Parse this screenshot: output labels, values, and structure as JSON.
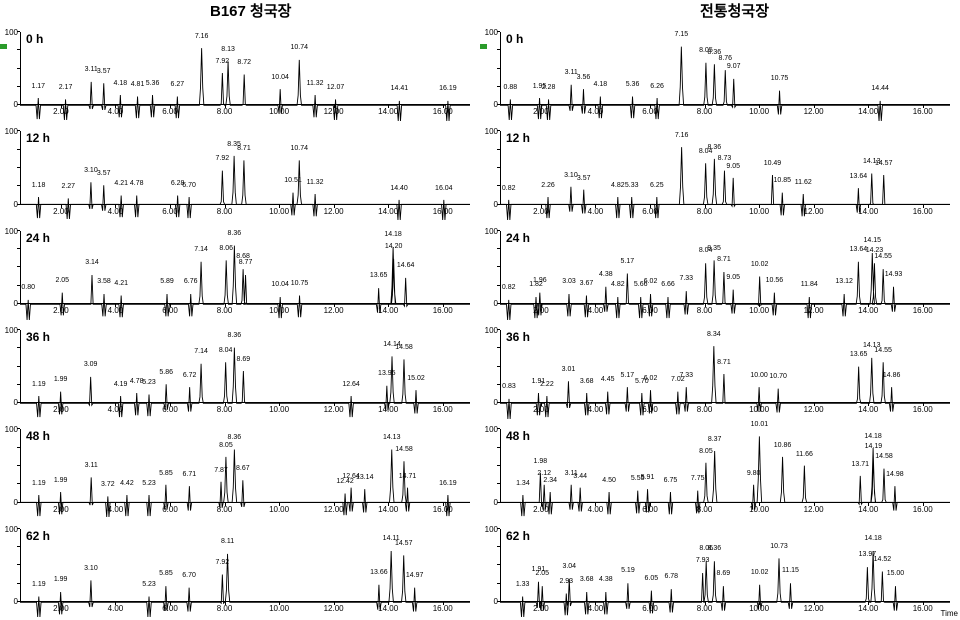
{
  "titles": {
    "left": "B167 청국장",
    "right": "전통청국장"
  },
  "axis": {
    "y_ticks": [
      0,
      100
    ],
    "x_ticks": [
      2.0,
      4.0,
      6.0,
      8.0,
      10.0,
      12.0,
      14.0,
      16.0
    ],
    "x_min": 0.5,
    "x_max": 17.0,
    "time_label": "Time",
    "line_color": "#000000",
    "tick_fontsize": 8
  },
  "style": {
    "trace_color": "#000000",
    "trace_width": 0.9,
    "label_fontsize": 7,
    "hour_fontsize": 12,
    "background": "#ffffff"
  },
  "rows": [
    "0 h",
    "12 h",
    "24 h",
    "36 h",
    "48 h",
    "62 h"
  ],
  "panels": [
    {
      "col": 0,
      "row": 0,
      "hour": "0 h",
      "marker": true,
      "peaks": [
        {
          "rt": 1.17,
          "h": 10
        },
        {
          "rt": 2.17,
          "h": 8
        },
        {
          "rt": 3.11,
          "h": 32
        },
        {
          "rt": 3.57,
          "h": 30
        },
        {
          "rt": 4.18,
          "h": 14
        },
        {
          "rt": 4.81,
          "h": 12
        },
        {
          "rt": 5.36,
          "h": 14
        },
        {
          "rt": 6.27,
          "h": 12
        },
        {
          "rt": 7.16,
          "h": 78
        },
        {
          "rt": 7.92,
          "h": 44
        },
        {
          "rt": 8.13,
          "h": 60
        },
        {
          "rt": 8.72,
          "h": 42
        },
        {
          "rt": 10.04,
          "h": 22
        },
        {
          "rt": 10.74,
          "h": 62
        },
        {
          "rt": 11.32,
          "h": 14
        },
        {
          "rt": 12.07,
          "h": 8
        },
        {
          "rt": 14.41,
          "h": 6
        },
        {
          "rt": 16.19,
          "h": 6
        }
      ]
    },
    {
      "col": 1,
      "row": 0,
      "hour": "0 h",
      "marker": true,
      "peaks": [
        {
          "rt": 0.88,
          "h": 8
        },
        {
          "rt": 1.95,
          "h": 10
        },
        {
          "rt": 2.28,
          "h": 8
        },
        {
          "rt": 3.11,
          "h": 28
        },
        {
          "rt": 3.56,
          "h": 22
        },
        {
          "rt": 4.18,
          "h": 12
        },
        {
          "rt": 5.36,
          "h": 12
        },
        {
          "rt": 6.26,
          "h": 10
        },
        {
          "rt": 7.15,
          "h": 80
        },
        {
          "rt": 8.05,
          "h": 58
        },
        {
          "rt": 8.36,
          "h": 56
        },
        {
          "rt": 8.76,
          "h": 48
        },
        {
          "rt": 9.07,
          "h": 36
        },
        {
          "rt": 10.75,
          "h": 20
        },
        {
          "rt": 14.44,
          "h": 6
        }
      ]
    },
    {
      "col": 0,
      "row": 1,
      "hour": "12 h",
      "peaks": [
        {
          "rt": 1.18,
          "h": 10
        },
        {
          "rt": 2.27,
          "h": 8
        },
        {
          "rt": 3.1,
          "h": 30
        },
        {
          "rt": 3.57,
          "h": 26
        },
        {
          "rt": 4.21,
          "h": 12
        },
        {
          "rt": 4.78,
          "h": 12
        },
        {
          "rt": 6.28,
          "h": 12
        },
        {
          "rt": 6.7,
          "h": 10
        },
        {
          "rt": 7.92,
          "h": 46
        },
        {
          "rt": 8.35,
          "h": 66
        },
        {
          "rt": 8.71,
          "h": 60
        },
        {
          "rt": 10.51,
          "h": 16
        },
        {
          "rt": 10.74,
          "h": 60
        },
        {
          "rt": 11.32,
          "h": 14
        },
        {
          "rt": 14.4,
          "h": 6
        },
        {
          "rt": 16.04,
          "h": 6
        }
      ]
    },
    {
      "col": 1,
      "row": 1,
      "hour": "12 h",
      "peaks": [
        {
          "rt": 0.82,
          "h": 6
        },
        {
          "rt": 2.26,
          "h": 10
        },
        {
          "rt": 3.1,
          "h": 24
        },
        {
          "rt": 3.57,
          "h": 20
        },
        {
          "rt": 4.82,
          "h": 10
        },
        {
          "rt": 5.33,
          "h": 10
        },
        {
          "rt": 6.25,
          "h": 10
        },
        {
          "rt": 7.16,
          "h": 78
        },
        {
          "rt": 8.04,
          "h": 56
        },
        {
          "rt": 8.36,
          "h": 62
        },
        {
          "rt": 8.73,
          "h": 46
        },
        {
          "rt": 9.05,
          "h": 36
        },
        {
          "rt": 10.49,
          "h": 40
        },
        {
          "rt": 10.85,
          "h": 16
        },
        {
          "rt": 11.62,
          "h": 14
        },
        {
          "rt": 13.64,
          "h": 22
        },
        {
          "rt": 14.13,
          "h": 42
        },
        {
          "rt": 14.57,
          "h": 40
        }
      ]
    },
    {
      "col": 0,
      "row": 2,
      "hour": "24 h",
      "peaks": [
        {
          "rt": 0.8,
          "h": 6
        },
        {
          "rt": 2.05,
          "h": 16
        },
        {
          "rt": 3.14,
          "h": 40
        },
        {
          "rt": 3.58,
          "h": 14
        },
        {
          "rt": 4.21,
          "h": 12
        },
        {
          "rt": 5.89,
          "h": 14
        },
        {
          "rt": 6.76,
          "h": 14
        },
        {
          "rt": 7.14,
          "h": 58
        },
        {
          "rt": 8.06,
          "h": 60
        },
        {
          "rt": 8.36,
          "h": 80
        },
        {
          "rt": 8.68,
          "h": 48
        },
        {
          "rt": 8.77,
          "h": 40
        },
        {
          "rt": 10.04,
          "h": 10
        },
        {
          "rt": 10.75,
          "h": 12
        },
        {
          "rt": 13.65,
          "h": 22
        },
        {
          "rt": 14.18,
          "h": 78
        },
        {
          "rt": 14.2,
          "h": 62
        },
        {
          "rt": 14.64,
          "h": 36
        }
      ]
    },
    {
      "col": 1,
      "row": 2,
      "hour": "24 h",
      "peaks": [
        {
          "rt": 0.82,
          "h": 6
        },
        {
          "rt": 1.82,
          "h": 10
        },
        {
          "rt": 1.96,
          "h": 16
        },
        {
          "rt": 3.03,
          "h": 14
        },
        {
          "rt": 3.67,
          "h": 12
        },
        {
          "rt": 4.38,
          "h": 24
        },
        {
          "rt": 4.82,
          "h": 10
        },
        {
          "rt": 5.17,
          "h": 42
        },
        {
          "rt": 5.66,
          "h": 10
        },
        {
          "rt": 6.02,
          "h": 14
        },
        {
          "rt": 6.66,
          "h": 10
        },
        {
          "rt": 7.33,
          "h": 18
        },
        {
          "rt": 8.04,
          "h": 56
        },
        {
          "rt": 8.35,
          "h": 60
        },
        {
          "rt": 8.71,
          "h": 44
        },
        {
          "rt": 9.05,
          "h": 20
        },
        {
          "rt": 10.02,
          "h": 38
        },
        {
          "rt": 10.56,
          "h": 16
        },
        {
          "rt": 11.84,
          "h": 10
        },
        {
          "rt": 13.12,
          "h": 14
        },
        {
          "rt": 13.64,
          "h": 58
        },
        {
          "rt": 14.15,
          "h": 70
        },
        {
          "rt": 14.23,
          "h": 56
        },
        {
          "rt": 14.55,
          "h": 48
        },
        {
          "rt": 14.93,
          "h": 24
        }
      ]
    },
    {
      "col": 0,
      "row": 3,
      "hour": "36 h",
      "peaks": [
        {
          "rt": 1.19,
          "h": 10
        },
        {
          "rt": 1.99,
          "h": 16
        },
        {
          "rt": 3.09,
          "h": 36
        },
        {
          "rt": 4.19,
          "h": 10
        },
        {
          "rt": 4.78,
          "h": 14
        },
        {
          "rt": 5.23,
          "h": 12
        },
        {
          "rt": 5.86,
          "h": 26
        },
        {
          "rt": 6.72,
          "h": 22
        },
        {
          "rt": 7.14,
          "h": 54
        },
        {
          "rt": 8.04,
          "h": 56
        },
        {
          "rt": 8.36,
          "h": 76
        },
        {
          "rt": 8.69,
          "h": 44
        },
        {
          "rt": 12.64,
          "h": 10
        },
        {
          "rt": 13.95,
          "h": 24
        },
        {
          "rt": 14.14,
          "h": 64
        },
        {
          "rt": 14.58,
          "h": 60
        },
        {
          "rt": 15.02,
          "h": 18
        }
      ]
    },
    {
      "col": 1,
      "row": 3,
      "hour": "36 h",
      "peaks": [
        {
          "rt": 0.83,
          "h": 6
        },
        {
          "rt": 1.91,
          "h": 14
        },
        {
          "rt": 2.22,
          "h": 10
        },
        {
          "rt": 3.01,
          "h": 30
        },
        {
          "rt": 3.68,
          "h": 14
        },
        {
          "rt": 4.45,
          "h": 16
        },
        {
          "rt": 5.17,
          "h": 22
        },
        {
          "rt": 5.7,
          "h": 14
        },
        {
          "rt": 6.02,
          "h": 18
        },
        {
          "rt": 7.02,
          "h": 16
        },
        {
          "rt": 7.33,
          "h": 22
        },
        {
          "rt": 8.34,
          "h": 78
        },
        {
          "rt": 8.71,
          "h": 40
        },
        {
          "rt": 10.0,
          "h": 22
        },
        {
          "rt": 10.7,
          "h": 20
        },
        {
          "rt": 13.65,
          "h": 50
        },
        {
          "rt": 14.13,
          "h": 62
        },
        {
          "rt": 14.55,
          "h": 56
        },
        {
          "rt": 14.86,
          "h": 22
        }
      ]
    },
    {
      "col": 0,
      "row": 4,
      "hour": "48 h",
      "peaks": [
        {
          "rt": 1.19,
          "h": 10
        },
        {
          "rt": 1.99,
          "h": 14
        },
        {
          "rt": 3.11,
          "h": 34
        },
        {
          "rt": 3.72,
          "h": 8
        },
        {
          "rt": 4.42,
          "h": 10
        },
        {
          "rt": 5.23,
          "h": 10
        },
        {
          "rt": 5.85,
          "h": 24
        },
        {
          "rt": 6.71,
          "h": 22
        },
        {
          "rt": 7.87,
          "h": 28
        },
        {
          "rt": 8.05,
          "h": 62
        },
        {
          "rt": 8.36,
          "h": 72
        },
        {
          "rt": 8.67,
          "h": 30
        },
        {
          "rt": 12.42,
          "h": 12
        },
        {
          "rt": 12.64,
          "h": 20
        },
        {
          "rt": 13.14,
          "h": 18
        },
        {
          "rt": 14.13,
          "h": 72
        },
        {
          "rt": 14.58,
          "h": 56
        },
        {
          "rt": 14.71,
          "h": 20
        },
        {
          "rt": 16.19,
          "h": 10
        }
      ]
    },
    {
      "col": 1,
      "row": 4,
      "hour": "48 h",
      "peaks": [
        {
          "rt": 1.34,
          "h": 10
        },
        {
          "rt": 1.98,
          "h": 40
        },
        {
          "rt": 2.12,
          "h": 24
        },
        {
          "rt": 2.34,
          "h": 14
        },
        {
          "rt": 3.11,
          "h": 24
        },
        {
          "rt": 3.44,
          "h": 20
        },
        {
          "rt": 4.5,
          "h": 14
        },
        {
          "rt": 5.55,
          "h": 16
        },
        {
          "rt": 5.91,
          "h": 18
        },
        {
          "rt": 6.75,
          "h": 14
        },
        {
          "rt": 7.75,
          "h": 16
        },
        {
          "rt": 8.05,
          "h": 54
        },
        {
          "rt": 8.37,
          "h": 70
        },
        {
          "rt": 9.8,
          "h": 24
        },
        {
          "rt": 10.01,
          "h": 90
        },
        {
          "rt": 10.86,
          "h": 62
        },
        {
          "rt": 11.66,
          "h": 50
        },
        {
          "rt": 13.71,
          "h": 36
        },
        {
          "rt": 14.18,
          "h": 74
        },
        {
          "rt": 14.19,
          "h": 60
        },
        {
          "rt": 14.58,
          "h": 46
        },
        {
          "rt": 14.98,
          "h": 22
        }
      ]
    },
    {
      "col": 0,
      "row": 5,
      "hour": "62 h",
      "peaks": [
        {
          "rt": 1.19,
          "h": 8
        },
        {
          "rt": 1.99,
          "h": 14
        },
        {
          "rt": 3.1,
          "h": 30
        },
        {
          "rt": 5.23,
          "h": 8
        },
        {
          "rt": 5.85,
          "h": 22
        },
        {
          "rt": 6.7,
          "h": 20
        },
        {
          "rt": 7.92,
          "h": 38
        },
        {
          "rt": 8.11,
          "h": 66
        },
        {
          "rt": 13.66,
          "h": 24
        },
        {
          "rt": 14.11,
          "h": 70
        },
        {
          "rt": 14.57,
          "h": 64
        },
        {
          "rt": 14.97,
          "h": 20
        }
      ]
    },
    {
      "col": 1,
      "row": 5,
      "hour": "62 h",
      "peaks": [
        {
          "rt": 1.33,
          "h": 8
        },
        {
          "rt": 1.91,
          "h": 28
        },
        {
          "rt": 2.05,
          "h": 22
        },
        {
          "rt": 2.93,
          "h": 12
        },
        {
          "rt": 3.04,
          "h": 32
        },
        {
          "rt": 3.68,
          "h": 14
        },
        {
          "rt": 4.38,
          "h": 14
        },
        {
          "rt": 5.19,
          "h": 26
        },
        {
          "rt": 6.05,
          "h": 16
        },
        {
          "rt": 6.78,
          "h": 18
        },
        {
          "rt": 7.93,
          "h": 40
        },
        {
          "rt": 8.06,
          "h": 56
        },
        {
          "rt": 8.36,
          "h": 56
        },
        {
          "rt": 8.69,
          "h": 22
        },
        {
          "rt": 10.02,
          "h": 24
        },
        {
          "rt": 10.73,
          "h": 60
        },
        {
          "rt": 11.15,
          "h": 26
        },
        {
          "rt": 13.97,
          "h": 48
        },
        {
          "rt": 14.18,
          "h": 70
        },
        {
          "rt": 14.52,
          "h": 42
        },
        {
          "rt": 15.0,
          "h": 22
        }
      ]
    }
  ]
}
